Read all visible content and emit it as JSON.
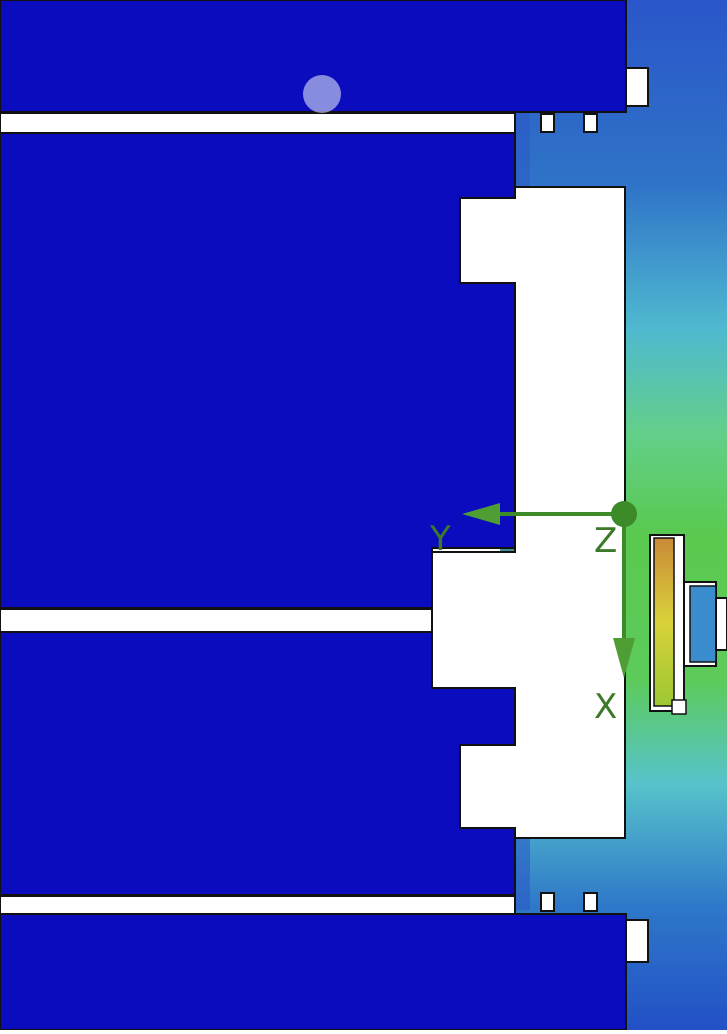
{
  "viewport": {
    "kind": "simulation-field-view"
  },
  "axes": {
    "x_label": "X",
    "y_label": "Y",
    "z_label": "Z",
    "color": "#3c8a28"
  },
  "colors": {
    "solid_body": "#0a0cbe",
    "field_low": "#1f4fc6",
    "field_mid": "#56c6c8",
    "field_high": "#58c94e",
    "background": "#ffffff"
  },
  "touch_indicator": {
    "visible": true
  }
}
